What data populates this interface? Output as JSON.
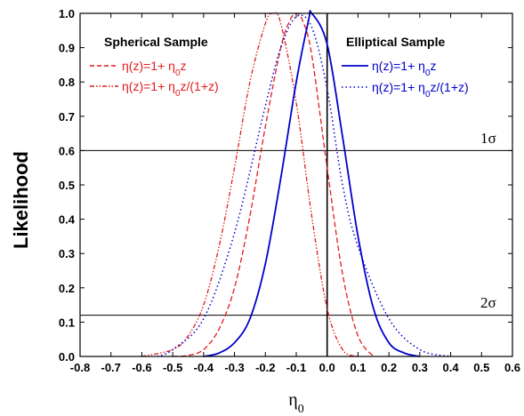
{
  "chart_data": {
    "type": "line",
    "xlabel": "η0",
    "ylabel": "Likelihood",
    "xlim": [
      -0.8,
      0.6
    ],
    "ylim": [
      0.0,
      1.0
    ],
    "x_ticks": [
      "-0.8",
      "-0.7",
      "-0.6",
      "-0.5",
      "-0.4",
      "-0.3",
      "-0.2",
      "-0.1",
      "0.0",
      "0.1",
      "0.2",
      "0.3",
      "0.4",
      "0.5",
      "0.6"
    ],
    "y_ticks": [
      "0.0",
      "0.1",
      "0.2",
      "0.3",
      "0.4",
      "0.5",
      "0.6",
      "0.7",
      "0.8",
      "0.9",
      "1.0"
    ],
    "grid": false,
    "groups": [
      {
        "title": "Spherical Sample",
        "position": "top-left"
      },
      {
        "title": "Elliptical Sample",
        "position": "top-right"
      }
    ],
    "series": [
      {
        "name": "η(z)=1+ η0z",
        "group": "Spherical Sample",
        "color": "#e41a1c",
        "dash": "dashed",
        "x": [
          -0.5,
          -0.45,
          -0.4,
          -0.35,
          -0.3,
          -0.25,
          -0.2,
          -0.15,
          -0.12,
          -0.1,
          -0.08,
          -0.05,
          0.0,
          0.05,
          0.1,
          0.15
        ],
        "y": [
          0.0,
          0.003,
          0.02,
          0.08,
          0.2,
          0.41,
          0.67,
          0.9,
          0.98,
          1.0,
          0.98,
          0.88,
          0.55,
          0.24,
          0.06,
          0.0
        ]
      },
      {
        "name": "η(z)=1+ η0z/(1+z)",
        "group": "Spherical Sample",
        "color": "#e41a1c",
        "dash": "dash-dot-dot",
        "x": [
          -0.6,
          -0.5,
          -0.45,
          -0.4,
          -0.35,
          -0.3,
          -0.25,
          -0.2,
          -0.175,
          -0.15,
          -0.1,
          -0.05,
          0.0,
          0.05,
          0.1
        ],
        "y": [
          0.0,
          0.02,
          0.06,
          0.15,
          0.32,
          0.55,
          0.8,
          0.97,
          1.0,
          0.97,
          0.74,
          0.41,
          0.14,
          0.02,
          0.0
        ]
      },
      {
        "name": "η(z)=1+ η0z",
        "group": "Elliptical Sample",
        "color": "#0000cc",
        "dash": "solid",
        "x": [
          -0.4,
          -0.35,
          -0.3,
          -0.25,
          -0.2,
          -0.15,
          -0.1,
          -0.06,
          -0.05,
          0.0,
          0.05,
          0.1,
          0.15,
          0.2,
          0.25,
          0.3
        ],
        "y": [
          0.0,
          0.01,
          0.04,
          0.11,
          0.27,
          0.52,
          0.8,
          0.98,
          1.0,
          0.91,
          0.64,
          0.35,
          0.14,
          0.04,
          0.01,
          0.0
        ]
      },
      {
        "name": "η(z)=1+ η0z/(1+z)",
        "group": "Elliptical Sample",
        "color": "#0000cc",
        "dash": "dotted",
        "x": [
          -0.55,
          -0.5,
          -0.4,
          -0.3,
          -0.2,
          -0.15,
          -0.1,
          -0.05,
          0.0,
          0.05,
          0.1,
          0.2,
          0.3,
          0.4
        ],
        "y": [
          0.0,
          0.02,
          0.11,
          0.36,
          0.73,
          0.9,
          0.99,
          0.96,
          0.78,
          0.5,
          0.32,
          0.11,
          0.02,
          0.0
        ]
      }
    ],
    "reference_lines": [
      {
        "orientation": "horizontal",
        "y": 0.6,
        "label": "1σ"
      },
      {
        "orientation": "horizontal",
        "y": 0.12,
        "label": "2σ"
      },
      {
        "orientation": "vertical",
        "x": 0.0
      }
    ]
  }
}
